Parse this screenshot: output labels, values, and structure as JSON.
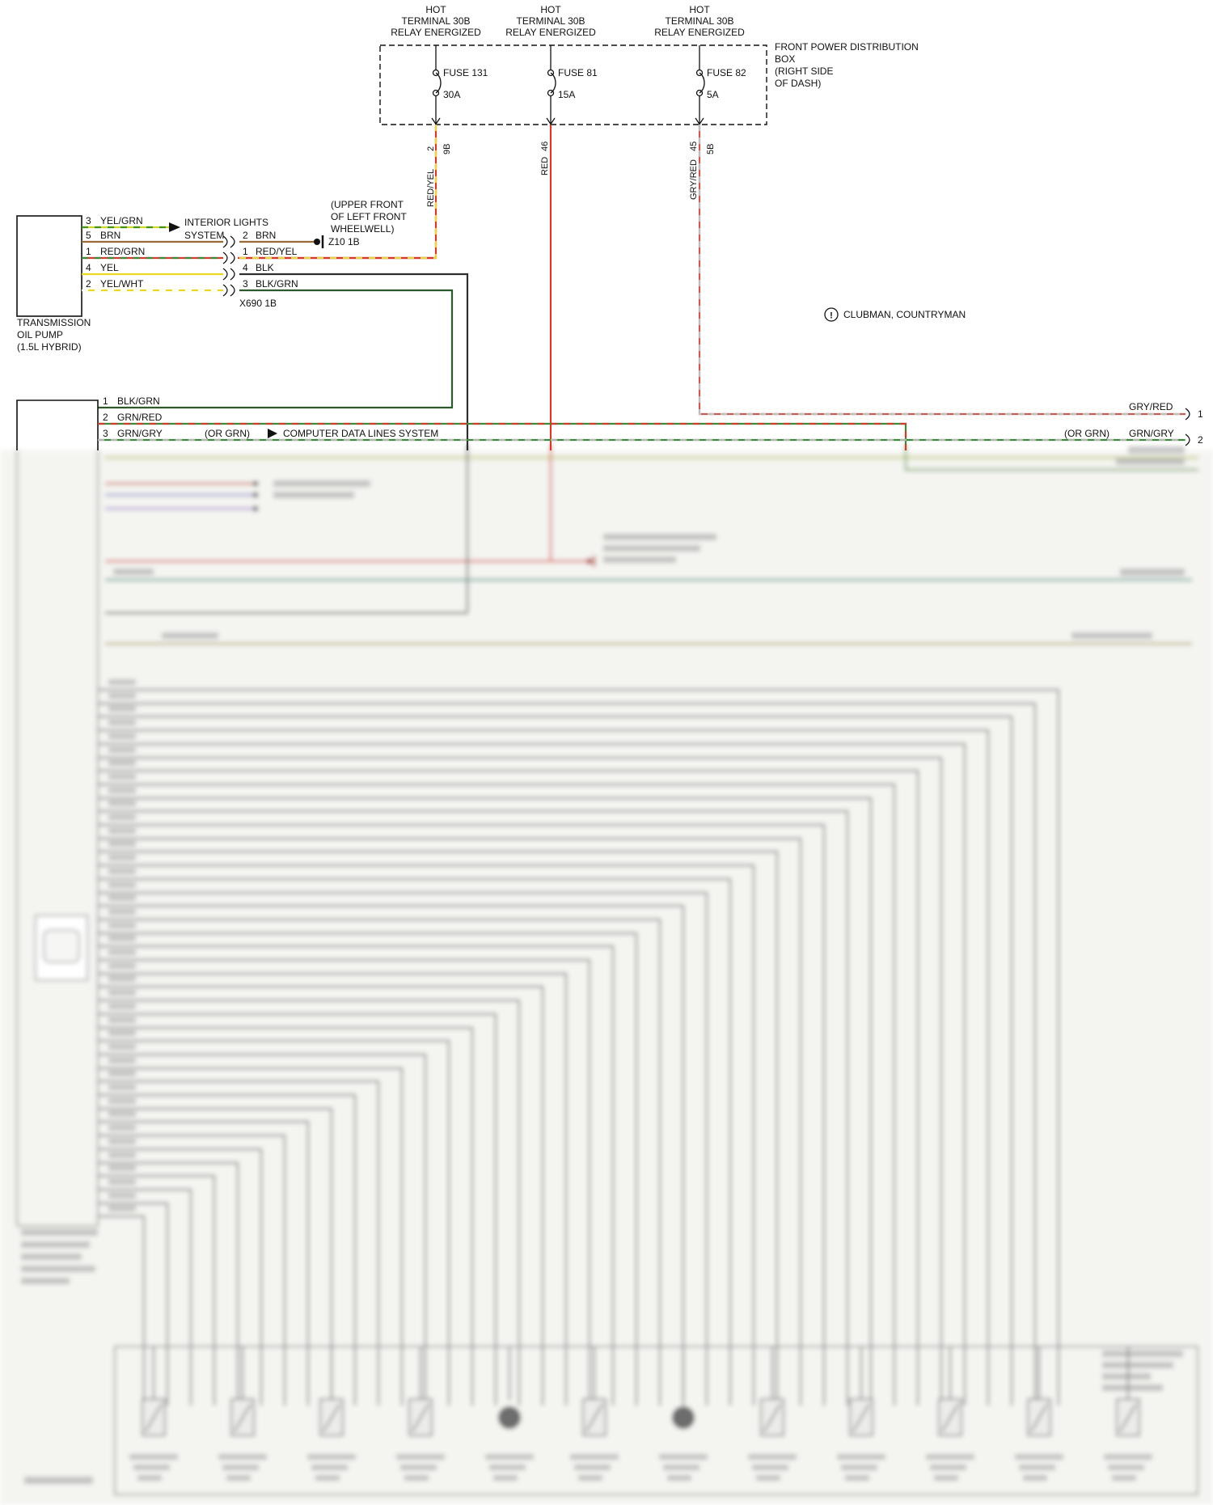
{
  "power_distribution": {
    "box_label_lines": [
      "FRONT POWER DISTRIBUTION",
      "BOX",
      "(RIGHT SIDE",
      "OF DASH)"
    ],
    "columns": [
      {
        "hot_lines": [
          "HOT",
          "TERMINAL 30B",
          "RELAY ENERGIZED"
        ],
        "fuse": "FUSE 131",
        "amps": "30A",
        "pin": "2",
        "connector": "9B",
        "wire_color": "RED/YEL"
      },
      {
        "hot_lines": [
          "HOT",
          "TERMINAL 30B",
          "RELAY ENERGIZED"
        ],
        "fuse": "FUSE 81",
        "amps": "15A",
        "pin": "46",
        "connector": "",
        "wire_color": "RED"
      },
      {
        "hot_lines": [
          "HOT",
          "TERMINAL 30B",
          "RELAY ENERGIZED"
        ],
        "fuse": "FUSE 82",
        "amps": "5A",
        "pin": "45",
        "connector": "5B",
        "wire_color": "GRY/RED"
      }
    ]
  },
  "transmission_oil_pump": {
    "label_lines": [
      "TRANSMISSION",
      "OIL PUMP",
      "(1.5L HYBRID)"
    ],
    "rows": [
      {
        "pin": "3",
        "color": "YEL/GRN"
      },
      {
        "pin": "5",
        "color": "BRN",
        "pin2": "2",
        "color2": "BRN"
      },
      {
        "pin": "1",
        "color": "RED/GRN",
        "pin2": "1",
        "color2": "RED/YEL"
      },
      {
        "pin": "4",
        "color": "YEL",
        "pin2": "4",
        "color2": "BLK"
      },
      {
        "pin": "2",
        "color": "YEL/WHT",
        "pin2": "3",
        "color2": "BLK/GRN"
      }
    ],
    "inline_connector": "X690 1B"
  },
  "interior_lights": {
    "lines": [
      "INTERIOR LIGHTS",
      "SYSTEM"
    ]
  },
  "splice": {
    "name": "Z10 1B",
    "location_lines": [
      "(UPPER FRONT",
      "OF LEFT FRONT",
      "WHEELWELL)"
    ]
  },
  "control_module": {
    "rows": [
      {
        "pin": "1",
        "color": "BLK/GRN"
      },
      {
        "pin": "2",
        "color": "GRN/RED"
      },
      {
        "pin": "3",
        "color": "GRN/GRY",
        "alt": "(OR GRN)"
      }
    ]
  },
  "computer_data_lines": {
    "label": "COMPUTER DATA LINES SYSTEM"
  },
  "right_edge": {
    "rows": [
      {
        "label": "GRY/RED",
        "pin": "1"
      },
      {
        "alt": "(OR GRN)",
        "label": "GRN/GRY",
        "pin": "2"
      }
    ]
  },
  "notes": {
    "variant_marker": "!",
    "variant": "CLUBMAN, COUNTRYMAN"
  },
  "wire_palette": {
    "RED/YEL": {
      "base": "#d23c2a",
      "stripe": "#e8d24a"
    },
    "RED": {
      "base": "#d23c2a",
      "stripe": null
    },
    "GRY/RED": {
      "base": "#cc5a50",
      "stripe": "#bdbdbd"
    },
    "YEL/GRN": {
      "base": "#cdd62a",
      "stripe": "#44941c"
    },
    "BRN": {
      "base": "#9a6a36",
      "stripe": null
    },
    "RED/GRN": {
      "base": "#d23c2a",
      "stripe": "#3a8a3a"
    },
    "YEL": {
      "base": "#e8d820",
      "stripe": null
    },
    "YEL/WHT": {
      "base": "#e8d820",
      "stripe": "#ffffff"
    },
    "BLK": {
      "base": "#2e2e2e",
      "stripe": null
    },
    "BLK/GRN": {
      "base": "#2c5a2c",
      "stripe": null
    },
    "GRN/RED": {
      "base": "#3a8a3a",
      "stripe": "#d23c2a"
    },
    "GRN/GRY": {
      "base": "#3a8a3a",
      "stripe": "#b5b5b5"
    }
  }
}
